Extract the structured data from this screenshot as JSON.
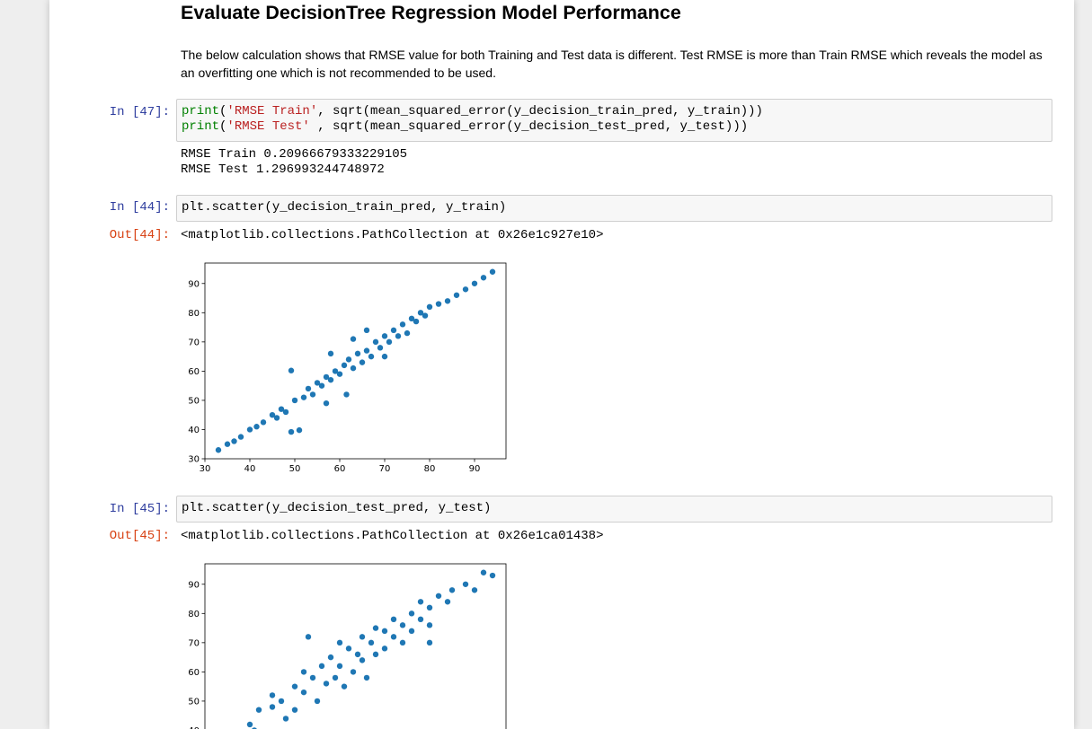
{
  "heading": "Evaluate DecisionTree Regression Model Performance",
  "paragraph": "The below calculation shows that RMSE value for both Training and Test data is different. Test RMSE is more than Train RMSE which reveals the model as an overfitting one which is not recommended to be used.",
  "cells": [
    {
      "prompt": "In [47]:",
      "code": [
        [
          "print",
          "(",
          "'RMSE Train'",
          ", sqrt(mean_squared_error(y_decision_train_pred, y_train)))"
        ],
        [
          "print",
          "(",
          "'RMSE Test'",
          " , sqrt(mean_squared_error(y_decision_test_pred, y_test)))"
        ]
      ],
      "output": [
        "RMSE Train 0.20966679333229105",
        "RMSE Test 1.296993244748972"
      ]
    },
    {
      "prompt": "In [44]:",
      "code": [
        [
          "plt.scatter(y_decision_train_pred, y_train)"
        ]
      ],
      "out_prompt": "Out[44]:",
      "output": [
        "<matplotlib.collections.PathCollection at 0x26e1c927e10>"
      ]
    },
    {
      "prompt": "In [45]:",
      "code": [
        [
          "plt.scatter(y_decision_test_pred, y_test)"
        ]
      ],
      "out_prompt": "Out[45]:",
      "output": [
        "<matplotlib.collections.PathCollection at 0x26e1ca01438>"
      ]
    }
  ],
  "chart_data": [
    {
      "type": "scatter",
      "color": "#1f77b4",
      "xlim": [
        30,
        97
      ],
      "ylim": [
        30,
        97
      ],
      "xticks": [
        30,
        40,
        50,
        60,
        70,
        80,
        90
      ],
      "yticks": [
        30,
        40,
        50,
        60,
        70,
        80,
        90
      ],
      "x": [
        33,
        35,
        36.5,
        38,
        40,
        41.5,
        43,
        45,
        46,
        47,
        48,
        49.2,
        49.2,
        51,
        50,
        52,
        53,
        54,
        55,
        56,
        57,
        57,
        58,
        59,
        60,
        61.5,
        61,
        62,
        63,
        64,
        65,
        66,
        67,
        68,
        69,
        70,
        71,
        72,
        73,
        74,
        75,
        76,
        77,
        78,
        79,
        80,
        82,
        84,
        86,
        88,
        90,
        92,
        94,
        58,
        66,
        63,
        70
      ],
      "values": [
        33,
        35,
        36,
        37.5,
        40,
        41,
        42.5,
        45,
        44,
        47,
        46,
        60.2,
        39.2,
        39.8,
        50,
        51,
        54,
        52,
        56,
        55,
        49,
        58,
        57,
        60,
        59,
        52,
        62,
        64,
        61,
        66,
        63,
        67,
        65,
        70,
        68,
        72,
        70,
        74,
        72,
        76,
        73,
        78,
        77,
        80,
        79,
        82,
        83,
        84,
        86,
        88,
        90,
        92,
        94,
        66,
        74,
        71,
        65
      ]
    },
    {
      "type": "scatter",
      "color": "#1f77b4",
      "xlim": [
        30,
        97
      ],
      "ylim": [
        30,
        97
      ],
      "yticks": [
        40,
        50,
        60,
        70,
        80,
        90
      ],
      "x": [
        40,
        41,
        42,
        45,
        45,
        47,
        48,
        50,
        50,
        52,
        52,
        54,
        55,
        56,
        57,
        58,
        59,
        60,
        60,
        61,
        62,
        63,
        64,
        65,
        65,
        66,
        67,
        68,
        68,
        70,
        70,
        72,
        72,
        74,
        74,
        76,
        76,
        78,
        78,
        80,
        80,
        82,
        84,
        85,
        88,
        90,
        92,
        94,
        53,
        80
      ],
      "values": [
        42,
        40,
        47,
        52,
        48,
        50,
        44,
        55,
        47,
        53,
        60,
        58,
        50,
        62,
        56,
        65,
        58,
        62,
        70,
        55,
        68,
        60,
        66,
        72,
        64,
        58,
        70,
        75,
        66,
        68,
        74,
        72,
        78,
        76,
        70,
        80,
        74,
        78,
        84,
        82,
        76,
        86,
        84,
        88,
        90,
        88,
        94,
        93,
        72,
        70
      ]
    }
  ]
}
